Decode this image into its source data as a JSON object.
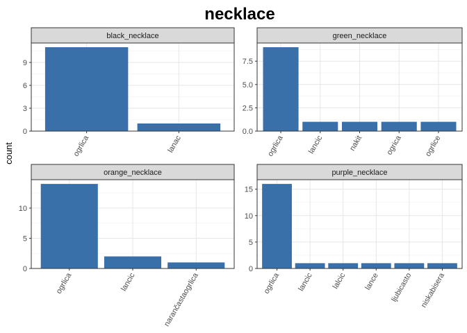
{
  "chart_data": {
    "type": "bar",
    "title": "necklace",
    "ylabel": "count",
    "xlabel": "",
    "grid": true,
    "bar_color": "#3a70aa",
    "facets": [
      {
        "strip": "black_necklace",
        "categories": [
          "ogrlica",
          "lanac"
        ],
        "values": [
          11,
          1
        ],
        "ylim": [
          0,
          11.55
        ],
        "yticks": [
          0,
          3,
          6,
          9
        ],
        "ytick_labels": [
          "0",
          "3",
          "6",
          "9"
        ]
      },
      {
        "strip": "green_necklace",
        "categories": [
          "ogrlica",
          "lancic",
          "nakit",
          "ogrica",
          "ogrlice"
        ],
        "values": [
          9,
          1,
          1,
          1,
          1
        ],
        "ylim": [
          0,
          9.45
        ],
        "yticks": [
          0,
          2.5,
          5,
          7.5
        ],
        "ytick_labels": [
          "0.0",
          "2.5",
          "5.0",
          "7.5"
        ]
      },
      {
        "strip": "orange_necklace",
        "categories": [
          "ogrlica",
          "lancic",
          "narančastaogrlica"
        ],
        "values": [
          14,
          2,
          1
        ],
        "ylim": [
          0,
          14.7
        ],
        "yticks": [
          0,
          5,
          10
        ],
        "ytick_labels": [
          "0",
          "5",
          "10"
        ]
      },
      {
        "strip": "purple_necklace",
        "categories": [
          "ogrlica",
          "lancic",
          "lalcic",
          "lance",
          "ljubicasto",
          "niskabisera"
        ],
        "values": [
          16,
          1,
          1,
          1,
          1,
          1
        ],
        "ylim": [
          0,
          16.8
        ],
        "yticks": [
          0,
          5,
          10,
          15
        ],
        "ytick_labels": [
          "0",
          "5",
          "10",
          "15"
        ]
      }
    ]
  }
}
